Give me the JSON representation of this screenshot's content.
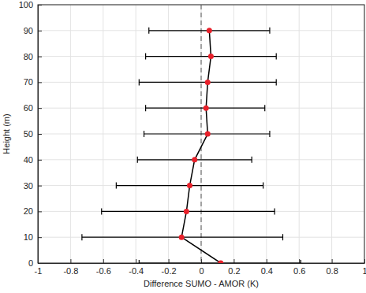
{
  "chart_data": {
    "type": "line",
    "x_label": "Difference SUMO - AMOR (K)",
    "y_label": "Height (m)",
    "y": [
      0,
      10,
      20,
      30,
      40,
      50,
      60,
      70,
      80,
      90
    ],
    "x": [
      0.12,
      -0.12,
      -0.09,
      -0.07,
      -0.04,
      0.04,
      0.03,
      0.04,
      0.06,
      0.05
    ],
    "lower": [
      -0.38,
      -0.73,
      -0.61,
      -0.52,
      -0.39,
      -0.35,
      -0.34,
      -0.38,
      -0.34,
      -0.32
    ],
    "upper": [
      0.61,
      0.5,
      0.45,
      0.38,
      0.31,
      0.42,
      0.39,
      0.46,
      0.46,
      0.42
    ],
    "reference_x": 0,
    "color": "#e8202a",
    "marker": "circle",
    "line_style": "solid",
    "xlim": [
      -1,
      1
    ],
    "xticks": [
      -1,
      -0.8,
      -0.6,
      -0.4,
      -0.2,
      0,
      0.2,
      0.4,
      0.6,
      0.8,
      1
    ],
    "ylim": [
      0,
      100
    ],
    "yticks": [
      0,
      10,
      20,
      30,
      40,
      50,
      60,
      70,
      80,
      90,
      100
    ],
    "grid": true
  }
}
